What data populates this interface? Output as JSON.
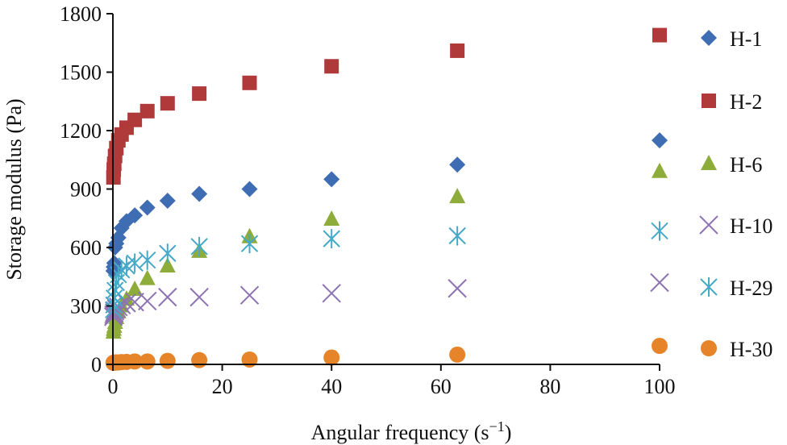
{
  "chart_data": {
    "type": "scatter",
    "title": "",
    "xlabel": "Angular frequency (s",
    "xlabel_sup": "−1",
    "xlabel_close": ")",
    "ylabel": "Storage modulus (Pa)",
    "xlim": [
      0,
      100
    ],
    "ylim": [
      0,
      1800
    ],
    "xticks": [
      0,
      20,
      40,
      60,
      80,
      100
    ],
    "yticks": [
      0,
      300,
      600,
      900,
      1200,
      1500,
      1800
    ],
    "grid": false,
    "legend_position": "right",
    "x": [
      0.1,
      0.158,
      0.25,
      0.4,
      0.63,
      1,
      1.58,
      2.5,
      4,
      6.3,
      10,
      15.8,
      25,
      40,
      63,
      100
    ],
    "series": [
      {
        "name": "H-1",
        "marker": "diamond",
        "color": "#3f6db3",
        "values": [
          480,
          500,
          520,
          600,
          620,
          650,
          700,
          735,
          765,
          805,
          840,
          875,
          900,
          950,
          1025,
          1150
        ]
      },
      {
        "name": "H-2",
        "marker": "square",
        "color": "#b03a3a",
        "values": [
          960,
          1000,
          1030,
          1070,
          1110,
          1150,
          1180,
          1215,
          1255,
          1300,
          1340,
          1390,
          1445,
          1530,
          1610,
          1690
        ]
      },
      {
        "name": "H-6",
        "marker": "triangle",
        "color": "#8dac3a",
        "values": [
          165,
          180,
          195,
          215,
          240,
          270,
          300,
          335,
          385,
          440,
          505,
          580,
          655,
          745,
          860,
          990
        ]
      },
      {
        "name": "H-10",
        "marker": "x",
        "color": "#8e73b3",
        "values": [
          245,
          255,
          265,
          275,
          285,
          295,
          305,
          315,
          320,
          325,
          345,
          345,
          355,
          365,
          390,
          420
        ]
      },
      {
        "name": "H-29",
        "marker": "asterisk",
        "color": "#45a9c8",
        "values": [
          280,
          305,
          340,
          380,
          420,
          460,
          485,
          505,
          520,
          535,
          570,
          605,
          620,
          645,
          660,
          685
        ]
      },
      {
        "name": "H-30",
        "marker": "circle",
        "color": "#e6842a",
        "values": [
          8,
          8,
          10,
          10,
          10,
          10,
          12,
          13,
          15,
          15,
          18,
          22,
          25,
          35,
          50,
          95
        ]
      }
    ]
  }
}
